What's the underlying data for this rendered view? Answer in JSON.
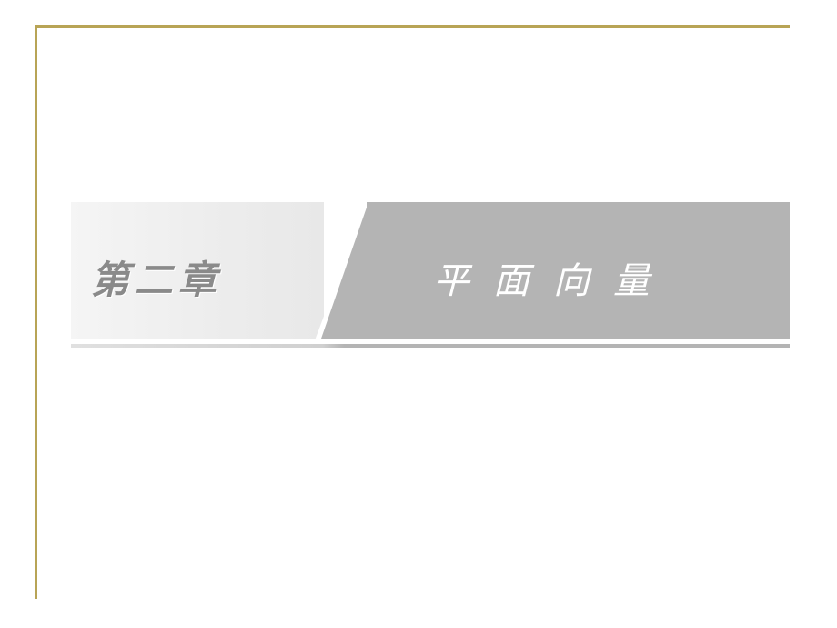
{
  "slide": {
    "chapter_label": "第二章",
    "chapter_title": "平面向量"
  },
  "style": {
    "frame_border_color": "#b8a456",
    "frame_border_width": 3,
    "banner_left_bg_start": "#f5f5f5",
    "banner_left_bg_end": "#e8e8e8",
    "banner_right_bg": "#b4b4b4",
    "chapter_label_color": "#8a8a8a",
    "chapter_label_fontsize": 42,
    "chapter_title_color": "#ffffff",
    "chapter_title_fontsize": 40,
    "background_color": "#ffffff",
    "diagonal_divider_width": 52
  }
}
